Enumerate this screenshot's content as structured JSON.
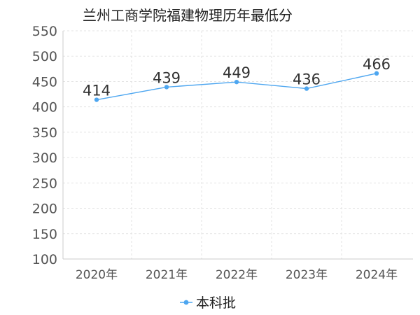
{
  "chart_data": {
    "type": "line",
    "title": "兰州工商学院福建物理历年最低分",
    "categories": [
      "2020年",
      "2021年",
      "2022年",
      "2023年",
      "2024年"
    ],
    "series": [
      {
        "name": "本科批",
        "values": [
          414,
          439,
          449,
          436,
          466
        ],
        "color": "#4da6f0"
      }
    ],
    "ylim": [
      100,
      550
    ],
    "yticks": [
      100,
      150,
      200,
      250,
      300,
      350,
      400,
      450,
      500,
      550
    ],
    "grid": true,
    "legend": "bottom-center"
  }
}
